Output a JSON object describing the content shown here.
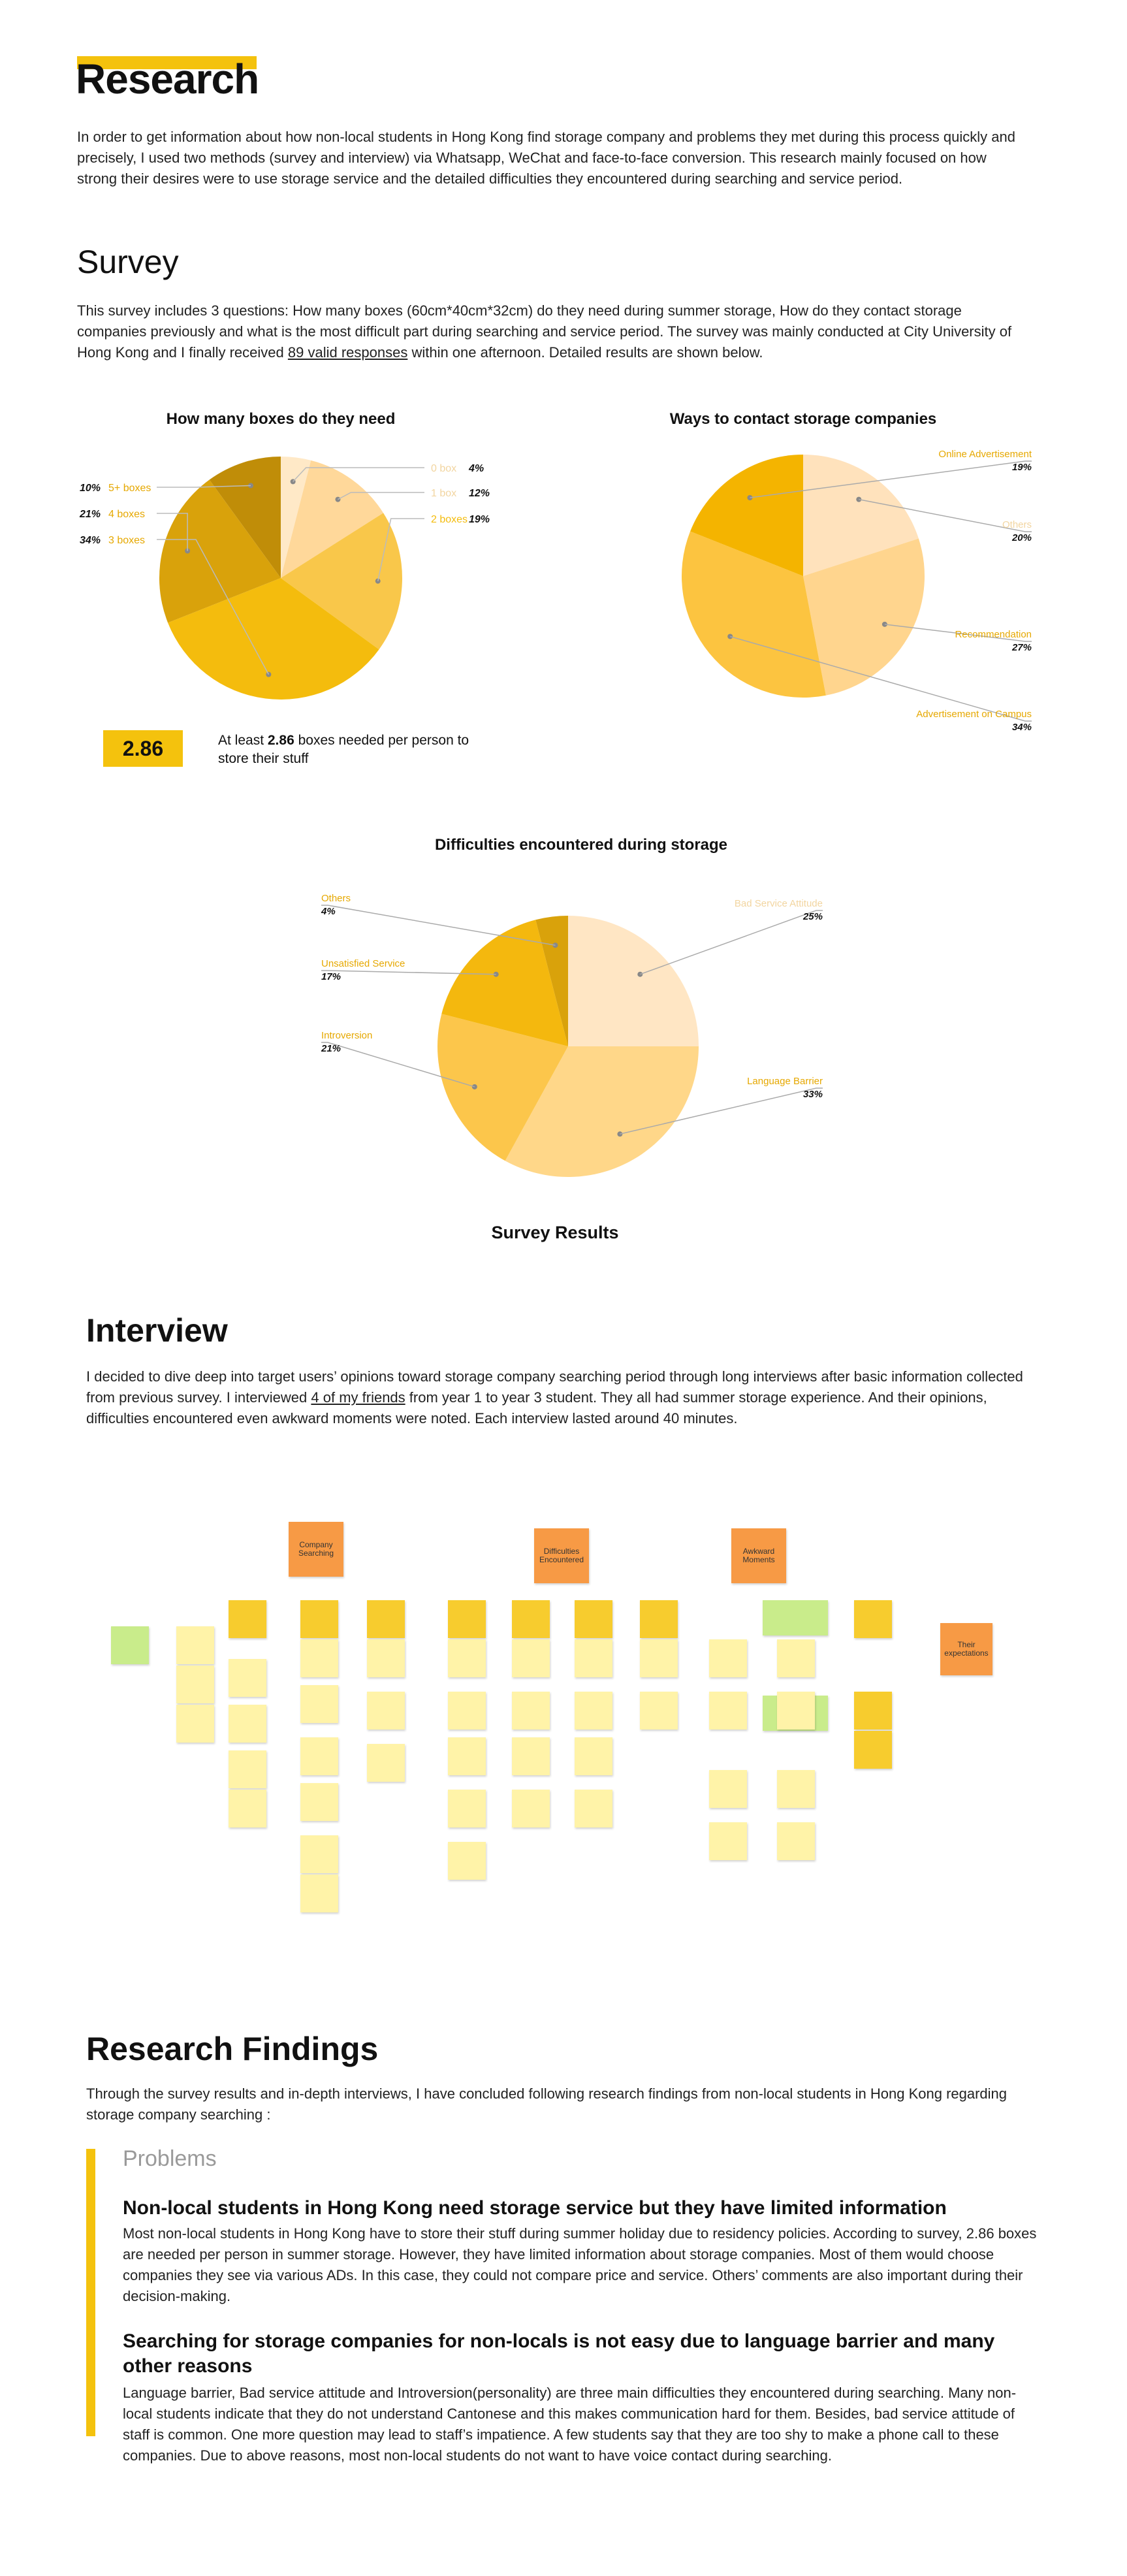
{
  "research": {
    "title": "Research",
    "intro": "In order to get information about how non-local students in Hong Kong find storage company and problems they met during this process quickly and precisely, I used two methods (survey and interview) via Whatsapp, WeChat and face-to-face conversion. This research mainly focused on how strong their desires were to use storage service and the detailed difficulties they encountered during searching and service period."
  },
  "survey": {
    "title": "Survey",
    "text_before_link": "This survey includes 3 questions: How many boxes (60cm*40cm*32cm) do they need during summer storage, How do they contact storage companies previously and what is the most difficult part during searching and service period. The survey was mainly conducted at City University of Hong Kong and I finally received ",
    "link_text": "89 valid responses",
    "text_after_link": " within one afternoon. Detailed results are shown below.",
    "stat_value": "2.86",
    "stat_text_pre": "At least ",
    "stat_text_bold": "2.86",
    "stat_text_post": " boxes needed per person to store their stuff",
    "results_caption": "Survey Results"
  },
  "chart_data": [
    {
      "type": "pie",
      "title": "How many boxes do they need",
      "categories": [
        "1 box",
        "2 boxes",
        "3 boxes",
        "4 boxes",
        "5+ boxes",
        "0 box"
      ],
      "values": [
        12,
        19,
        34,
        21,
        10,
        4
      ],
      "colors": [
        "#FFD89A",
        "#F9C74A",
        "#F4BC0D",
        "#D9A20B",
        "#C08D08",
        "#FFE9C7"
      ]
    },
    {
      "type": "pie",
      "title": "Ways to contact storage companies",
      "categories": [
        "Others",
        "Recommendation",
        "Advertisement on Campus",
        "Online Advertisement"
      ],
      "values": [
        20,
        27,
        34,
        19
      ],
      "colors": [
        "#FFE2BC",
        "#FFD58E",
        "#FCC440",
        "#F4B400"
      ]
    },
    {
      "type": "pie",
      "title": "Difficulties encountered during storage",
      "categories": [
        "Bad Service Attitude",
        "Language Barrier",
        "Introversion",
        "Unsatisfied Service",
        "Others"
      ],
      "values": [
        25,
        33,
        21,
        17,
        4
      ],
      "colors": [
        "#FFE6C4",
        "#FFD789",
        "#FCC64B",
        "#F4B80E",
        "#D9A20B"
      ]
    }
  ],
  "interview": {
    "title": "Interview",
    "text_before_link": "I decided to dive deep into target users’ opinions toward storage company searching period through long interviews after basic information collected from previous survey. I interviewed ",
    "link_text": "4 of my friends",
    "text_after_link": " from year 1 to year 3 student. They all had summer storage experience. And their opinions, difficulties encountered even awkward moments were noted. Each interview lasted around 40 minutes.",
    "board": {
      "groups": [
        "Company Searching",
        "Difficulties Encountered",
        "Awkward Moments",
        "Their expectations"
      ]
    }
  },
  "findings": {
    "title": "Research Findings",
    "intro": "Through the survey results and in-depth interviews, I have concluded following research findings from non-local students in Hong Kong regarding storage company searching :",
    "problems_label": "Problems",
    "items": [
      {
        "title": "Non-local students in Hong Kong need storage service but they have limited information",
        "body": "Most non-local students in Hong Kong have to store their stuff during summer holiday due to residency policies. According to survey, 2.86 boxes are needed per person in summer storage. However, they have limited information about storage companies. Most of them would choose companies they see via various ADs. In this case, they could not compare price and service. Others’ comments are also important during their decision-making."
      },
      {
        "title": "Searching for storage companies for non-locals is not easy due to language barrier and many other reasons",
        "body": "Language barrier, Bad service attitude and Introversion(personality) are three main difficulties they encountered during searching. Many non-local students indicate that they do not understand Cantonese and this makes communication hard for them. Besides, bad service attitude of staff is common. One more question may lead to staff’s impatience. A few students say that they are too shy to make a phone call to these companies. Due to above reasons, most non-local students do not want to have voice contact during searching."
      }
    ]
  }
}
